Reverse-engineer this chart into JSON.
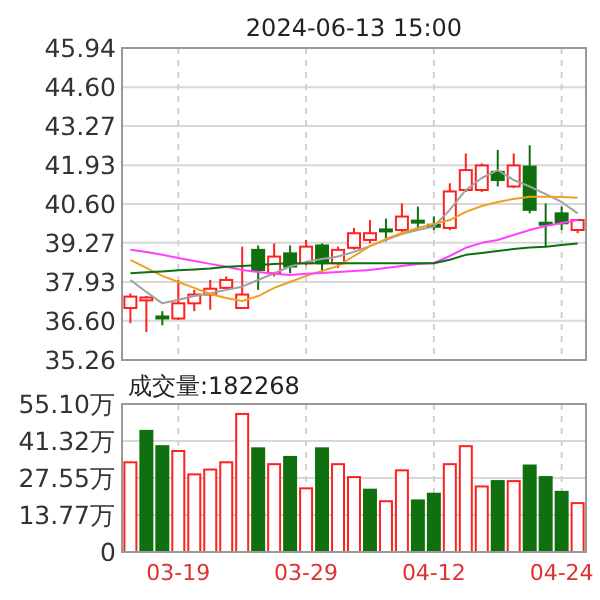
{
  "chart_data": [
    {
      "type": "candlestick",
      "title": "2024-06-13 15:00",
      "tick_labels": "y",
      "grid": true,
      "categories": [
        null,
        null,
        null,
        null,
        null,
        null,
        null,
        null,
        null,
        null,
        null,
        null,
        null,
        null,
        null,
        null,
        null,
        null,
        null,
        null,
        null,
        null,
        null,
        null,
        null,
        null,
        null,
        null,
        null
      ],
      "ohlc": [
        [
          37.04,
          37.54,
          36.52,
          37.43
        ],
        [
          37.3,
          37.45,
          36.22,
          37.4
        ],
        [
          36.75,
          36.93,
          36.45,
          36.72
        ],
        [
          36.68,
          38.0,
          36.63,
          37.2
        ],
        [
          37.2,
          37.66,
          36.93,
          37.5
        ],
        [
          37.5,
          38.0,
          36.98,
          37.7
        ],
        [
          37.73,
          38.12,
          37.66,
          38.0
        ],
        [
          37.04,
          39.14,
          37.02,
          37.5
        ],
        [
          39.03,
          39.18,
          37.66,
          38.34
        ],
        [
          38.23,
          39.25,
          38.12,
          38.8
        ],
        [
          38.91,
          39.18,
          38.23,
          38.46
        ],
        [
          38.57,
          39.37,
          38.5,
          39.14
        ],
        [
          39.18,
          39.25,
          38.23,
          38.57
        ],
        [
          38.57,
          39.14,
          38.41,
          39.03
        ],
        [
          39.1,
          39.78,
          39.03,
          39.6
        ],
        [
          39.37,
          40.05,
          39.25,
          39.6
        ],
        [
          39.73,
          40.1,
          39.32,
          39.71
        ],
        [
          39.71,
          40.62,
          39.64,
          40.17
        ],
        [
          40.03,
          40.51,
          39.71,
          40.01
        ],
        [
          39.89,
          40.17,
          39.71,
          39.87
        ],
        [
          39.78,
          41.31,
          39.71,
          41.03
        ],
        [
          41.08,
          42.33,
          41.01,
          41.76
        ],
        [
          41.08,
          41.99,
          41.01,
          41.92
        ],
        [
          41.7,
          42.45,
          41.2,
          41.42
        ],
        [
          41.2,
          42.33,
          41.15,
          41.92
        ],
        [
          41.88,
          42.61,
          40.28,
          40.4
        ],
        [
          39.96,
          40.62,
          39.14,
          39.94
        ],
        [
          40.28,
          40.51,
          39.71,
          39.94
        ],
        [
          39.71,
          40.05,
          39.6,
          40.05
        ]
      ],
      "series": [
        {
          "type": "line",
          "color": "#a0a0a0",
          "values": [
            38.0,
            37.59,
            37.2,
            37.32,
            37.45,
            37.54,
            37.66,
            37.77,
            38.0,
            38.23,
            38.46,
            38.62,
            38.72,
            38.8,
            38.96,
            39.16,
            39.37,
            39.57,
            39.71,
            39.83,
            40.4,
            41.08,
            41.49,
            41.76,
            41.42,
            41.2,
            40.94,
            40.67,
            40.28
          ]
        },
        {
          "type": "line",
          "color": "#f0a020",
          "values": [
            38.69,
            38.41,
            38.14,
            37.93,
            37.73,
            37.52,
            37.38,
            37.28,
            37.45,
            37.73,
            37.93,
            38.14,
            38.31,
            38.48,
            38.82,
            39.16,
            39.4,
            39.61,
            39.78,
            39.92,
            40.05,
            40.33,
            40.53,
            40.67,
            40.77,
            40.85,
            40.85,
            40.84,
            40.81
          ]
        },
        {
          "type": "line",
          "color": "#ff40ff",
          "values": [
            39.03,
            38.96,
            38.86,
            38.75,
            38.65,
            38.55,
            38.45,
            38.34,
            38.27,
            38.21,
            38.17,
            38.21,
            38.24,
            38.27,
            38.31,
            38.34,
            38.41,
            38.48,
            38.55,
            38.58,
            38.82,
            39.1,
            39.27,
            39.37,
            39.54,
            39.71,
            39.85,
            39.95,
            40.05
          ]
        },
        {
          "type": "line",
          "color": "#107010",
          "values": [
            38.23,
            38.26,
            38.29,
            38.33,
            38.36,
            38.39,
            38.45,
            38.48,
            38.51,
            38.55,
            38.57,
            38.57,
            38.57,
            38.57,
            38.57,
            38.57,
            38.57,
            38.57,
            38.57,
            38.57,
            38.69,
            38.86,
            38.92,
            38.99,
            39.06,
            39.11,
            39.14,
            39.2,
            39.25
          ]
        }
      ],
      "ylim": [
        35.26,
        45.94
      ],
      "yticks": [
        35.26,
        {
          "value": 36.6,
          "label": "36.60"
        },
        37.93,
        39.27,
        {
          "value": 40.6,
          "label": "40.60"
        },
        41.93,
        43.27,
        {
          "value": 44.6,
          "label": "44.60"
        },
        45.94
      ]
    },
    {
      "type": "bar",
      "grid": true,
      "annotations": [
        "成交量:182268"
      ],
      "categories": [
        null,
        null,
        null,
        "03-19",
        null,
        null,
        null,
        null,
        null,
        null,
        null,
        "03-29",
        null,
        null,
        null,
        null,
        null,
        null,
        null,
        "04-12",
        null,
        null,
        null,
        null,
        null,
        null,
        null,
        "04-24",
        null
      ],
      "values": [
        33.4,
        45.1,
        39.4,
        37.6,
        28.9,
        30.7,
        33.4,
        51.4,
        38.6,
        32.7,
        35.4,
        23.7,
        38.6,
        32.7,
        27.9,
        23.2,
        18.9,
        30.4,
        19.2,
        21.7,
        32.7,
        39.4,
        24.4,
        26.4,
        26.4,
        32.2,
        27.9,
        22.4,
        18.2
      ],
      "colors": [
        "#ff2020",
        "#107010",
        "#107010",
        "#ff2020",
        "#ff2020",
        "#ff2020",
        "#ff2020",
        "#ff2020",
        "#107010",
        "#ff2020",
        "#107010",
        "#ff2020",
        "#107010",
        "#ff2020",
        "#ff2020",
        "#107010",
        "#ff2020",
        "#ff2020",
        "#107010",
        "#107010",
        "#ff2020",
        "#ff2020",
        "#ff2020",
        "#107010",
        "#ff2020",
        "#107010",
        "#107010",
        "#107010",
        "#ff2020"
      ],
      "ylim": [
        0,
        55.1
      ],
      "yticks": [
        {
          "value": 0,
          "label": "0"
        },
        {
          "value": 13.77,
          "label": "13.77万"
        },
        {
          "value": 27.55,
          "label": "27.55万"
        },
        {
          "value": 41.32,
          "label": "41.32万"
        },
        {
          "value": 55.1,
          "label": "55.10万"
        }
      ]
    }
  ]
}
